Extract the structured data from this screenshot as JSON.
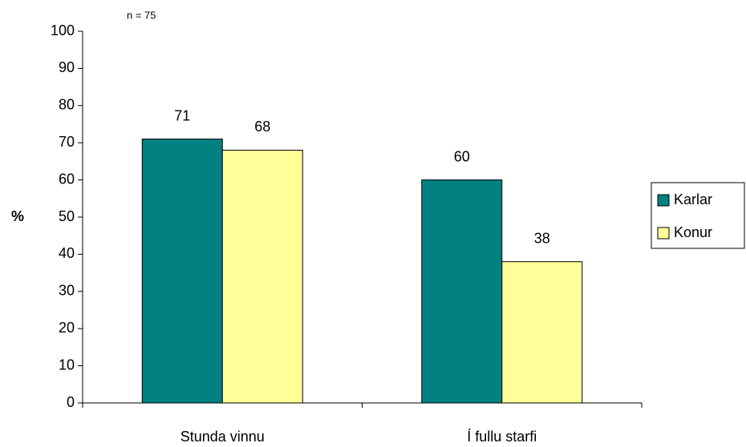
{
  "chart_data": {
    "type": "bar",
    "annotation": "n = 75",
    "y_label": "%",
    "categories": [
      "Stunda vinnu",
      "Í fullu starfi"
    ],
    "series": [
      {
        "name": "Karlar",
        "color": "#008080",
        "values": [
          71,
          60
        ]
      },
      {
        "name": "Konur",
        "color": "#ffff99",
        "values": [
          68,
          38
        ]
      }
    ],
    "ylim": [
      0,
      100
    ],
    "yticks": [
      0,
      10,
      20,
      30,
      40,
      50,
      60,
      70,
      80,
      90,
      100
    ],
    "legend": "right",
    "grid": false
  }
}
